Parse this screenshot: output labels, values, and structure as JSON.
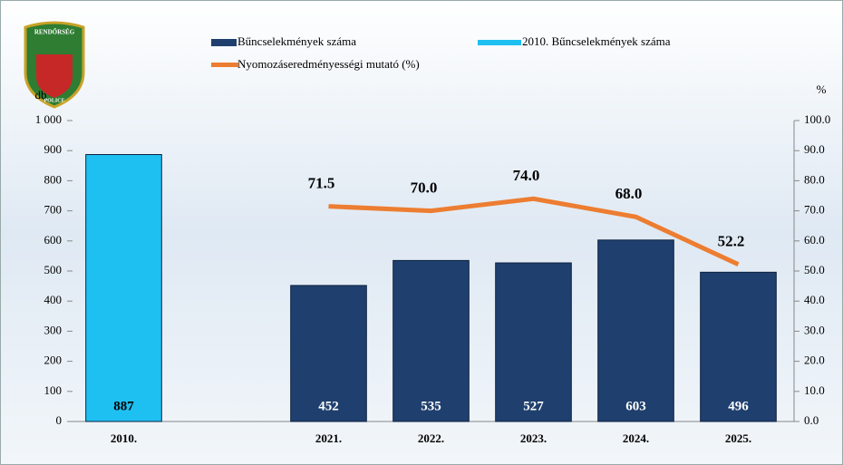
{
  "logo": {
    "top": "RENDŐRSÉG",
    "bottom": "POLICE"
  },
  "chart_data": {
    "type": "bar",
    "categories": [
      "2010.",
      null,
      "2021.",
      "2022.",
      "2023.",
      "2024.",
      "2025."
    ],
    "series": [
      {
        "name": "Bűncselekmények száma",
        "color": "#1f3f6e",
        "values": [
          null,
          null,
          452,
          535,
          527,
          603,
          496
        ]
      },
      {
        "name": "2010. Bűncselekmények száma",
        "color": "#1ec0f2",
        "values": [
          887,
          null,
          null,
          null,
          null,
          null,
          null
        ]
      },
      {
        "name": "Nyomozáseredményességi mutató (%)",
        "type": "line",
        "axis": "y2",
        "color": "#ed7d31",
        "values": [
          null,
          null,
          71.5,
          70.0,
          74.0,
          68.0,
          52.2
        ],
        "value_labels": [
          null,
          null,
          "71.5",
          "70.0",
          "74.0",
          "68.0",
          "52.2"
        ]
      }
    ],
    "y_label": "db",
    "y2_label": "%",
    "ylim": [
      0,
      1000
    ],
    "yticks": [
      0,
      100,
      200,
      300,
      400,
      500,
      600,
      700,
      800,
      900,
      {
        "value": 1000,
        "label": "1 000"
      }
    ],
    "y2lim": [
      0,
      100
    ],
    "y2ticks": [
      {
        "value": 0,
        "label": "0.0"
      },
      {
        "value": 10,
        "label": "10.0"
      },
      {
        "value": 20,
        "label": "20.0"
      },
      {
        "value": 30,
        "label": "30.0"
      },
      {
        "value": 40,
        "label": "40.0"
      },
      {
        "value": 50,
        "label": "50.0"
      },
      {
        "value": 60,
        "label": "60.0"
      },
      {
        "value": 70,
        "label": "70.0"
      },
      {
        "value": 80,
        "label": "80.0"
      },
      {
        "value": 90,
        "label": "90.0"
      },
      {
        "value": 100,
        "label": "100.0"
      }
    ]
  }
}
